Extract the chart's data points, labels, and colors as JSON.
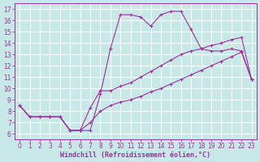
{
  "bg_color": "#c8e8e8",
  "line_color": "#993399",
  "grid_color": "#ffffff",
  "xlabel": "Windchill (Refroidissement éolien,°C)",
  "xlim": [
    -0.5,
    23.5
  ],
  "ylim": [
    5.5,
    17.5
  ],
  "xticks": [
    0,
    1,
    2,
    3,
    4,
    5,
    6,
    7,
    8,
    9,
    10,
    11,
    12,
    13,
    14,
    15,
    16,
    17,
    18,
    19,
    20,
    21,
    22,
    23
  ],
  "yticks": [
    6,
    7,
    8,
    9,
    10,
    11,
    12,
    13,
    14,
    15,
    16,
    17
  ],
  "line1_x": [
    0,
    1,
    2,
    3,
    4,
    5,
    6,
    7,
    8,
    9,
    10,
    11,
    12,
    13,
    14,
    15,
    16,
    17,
    18,
    19,
    20,
    21,
    22,
    23
  ],
  "line1_y": [
    8.5,
    7.5,
    7.5,
    7.5,
    7.5,
    6.3,
    6.3,
    6.3,
    9.5,
    13.5,
    16.5,
    16.5,
    16.3,
    15.5,
    16.5,
    16.8,
    16.8,
    15.2,
    13.5,
    13.3,
    13.3,
    13.5,
    13.3,
    10.8
  ],
  "line2_x": [
    0,
    1,
    2,
    3,
    4,
    5,
    6,
    7,
    8,
    9,
    10,
    11,
    12,
    13,
    14,
    15,
    16,
    17,
    18,
    19,
    20,
    21,
    22,
    23
  ],
  "line2_y": [
    8.5,
    7.5,
    7.5,
    7.5,
    7.5,
    6.3,
    6.3,
    8.3,
    9.8,
    9.8,
    10.2,
    10.5,
    11.0,
    11.5,
    12.0,
    12.5,
    13.0,
    13.3,
    13.5,
    13.8,
    14.0,
    14.3,
    14.5,
    10.8
  ],
  "line3_x": [
    0,
    1,
    2,
    3,
    4,
    5,
    6,
    7,
    8,
    9,
    10,
    11,
    12,
    13,
    14,
    15,
    16,
    17,
    18,
    19,
    20,
    21,
    22,
    23
  ],
  "line3_y": [
    8.5,
    7.5,
    7.5,
    7.5,
    7.5,
    6.3,
    6.3,
    7.0,
    8.0,
    8.5,
    8.8,
    9.0,
    9.3,
    9.7,
    10.0,
    10.4,
    10.8,
    11.2,
    11.6,
    12.0,
    12.4,
    12.8,
    13.2,
    10.8
  ]
}
